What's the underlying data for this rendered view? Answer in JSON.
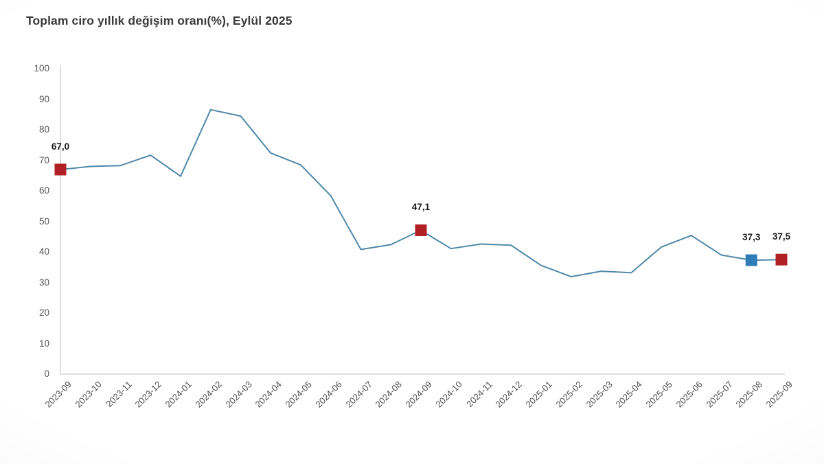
{
  "title": "Toplam ciro yıllık değişim oranı(%), Eylül 2025",
  "colors": {
    "line": "#4e88a8",
    "marker_red": "#b02025",
    "marker_blue": "#2e7cb8",
    "axis_line": "#cdcdcd",
    "title_text": "#3a3a3a",
    "tick_text": "#555555",
    "point_label_text": "#1c1c1c"
  },
  "chart_data": {
    "type": "line",
    "title": "Toplam ciro yıllık değişim oranı(%), Eylül 2025",
    "xlabel": "",
    "ylabel": "",
    "ylim": [
      0,
      100
    ],
    "yticks": [
      0,
      10,
      20,
      30,
      40,
      50,
      60,
      70,
      80,
      90,
      100
    ],
    "grid": false,
    "legend": false,
    "x": [
      "2023-09",
      "2023-10",
      "2023-11",
      "2023-12",
      "2024-01",
      "2024-02",
      "2024-03",
      "2024-04",
      "2024-05",
      "2024-06",
      "2024-07",
      "2024-08",
      "2024-09",
      "2024-10",
      "2024-11",
      "2024-12",
      "2025-01",
      "2025-02",
      "2025-03",
      "2025-04",
      "2025-05",
      "2025-06",
      "2025-07",
      "2025-08",
      "2025-09"
    ],
    "values": [
      67.0,
      68.0,
      68.3,
      71.7,
      64.8,
      86.6,
      84.5,
      72.4,
      68.5,
      58.4,
      40.8,
      42.4,
      47.1,
      41.1,
      42.6,
      42.2,
      35.6,
      31.9,
      33.7,
      33.2,
      41.6,
      45.4,
      39.0,
      37.3,
      37.5
    ],
    "highlighted_points": [
      {
        "x": "2023-09",
        "value": 67.0,
        "label": "67,0",
        "marker": "red"
      },
      {
        "x": "2024-09",
        "value": 47.1,
        "label": "47,1",
        "marker": "red"
      },
      {
        "x": "2025-08",
        "value": 37.3,
        "label": "37,3",
        "marker": "blue"
      },
      {
        "x": "2025-09",
        "value": 37.5,
        "label": "37,5",
        "marker": "red"
      }
    ]
  }
}
